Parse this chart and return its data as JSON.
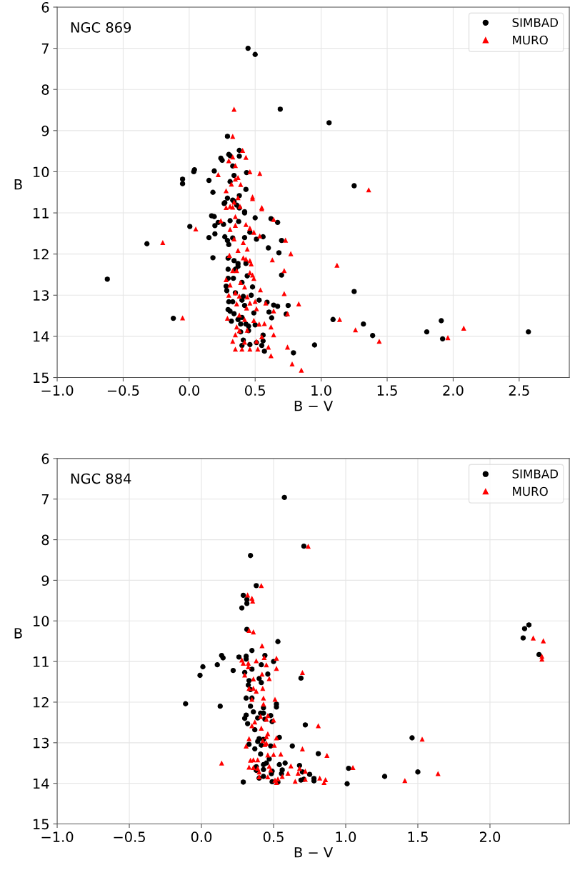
{
  "chart_data": [
    {
      "type": "scatter",
      "annotations": [
        "NGC 869"
      ],
      "xlabel": "B − V",
      "ylabel": "B",
      "xlim": [
        -1.0,
        2.88
      ],
      "xticks": [
        {
          "value": -1.0,
          "label": "−1.0"
        },
        {
          "value": -0.5,
          "label": "−0.5"
        },
        {
          "value": 0.0,
          "label": "0.0"
        },
        {
          "value": 0.5,
          "label": "0.5"
        },
        {
          "value": 1.0,
          "label": "1.0"
        },
        {
          "value": 1.5,
          "label": "1.5"
        },
        {
          "value": 2.0,
          "label": "2.0"
        },
        {
          "value": 2.5,
          "label": "2.5"
        }
      ],
      "ylim": [
        15,
        6
      ],
      "yticks": [
        6,
        7,
        8,
        9,
        10,
        11,
        12,
        13,
        14,
        15
      ],
      "grid": true,
      "legend": "top right",
      "series": [
        {
          "name": "SIMBAD",
          "color": "#000000",
          "marker": "circle",
          "x": [
            0.446,
            0.5,
            0.69,
            1.06,
            0.29,
            0.38,
            0.3,
            0.31,
            0.38,
            0.24,
            0.25,
            0.33,
            0.04,
            0.035,
            0.19,
            0.435,
            -0.05,
            -0.05,
            0.34,
            0.15,
            0.31,
            1.25,
            0.43,
            0.18,
            0.38,
            0.29,
            0.33,
            0.27,
            0.36,
            0.38,
            0.42,
            0.265,
            0.34,
            0.17,
            0.19,
            0.42,
            0.5,
            0.62,
            0.67,
            0.22,
            0.005,
            0.195,
            0.26,
            0.31,
            0.375,
            0.46,
            0.56,
            0.195,
            0.15,
            0.27,
            0.29,
            0.3,
            0.33,
            0.42,
            0.51,
            0.7,
            -0.32,
            0.6,
            0.68,
            0.18,
            0.295,
            0.34,
            0.37,
            0.37,
            0.43,
            0.295,
            0.35,
            0.7,
            0.44,
            0.295,
            0.335,
            0.4,
            0.48,
            -0.62,
            0.28,
            0.285,
            0.35,
            0.47,
            1.25,
            0.41,
            0.4,
            0.3,
            0.33,
            0.53,
            0.59,
            0.64,
            0.67,
            0.75,
            0.42,
            0.295,
            0.31,
            0.34,
            0.49,
            0.605,
            0.735,
            0.4,
            0.37,
            0.32,
            0.625,
            -0.12,
            1.09,
            1.32,
            1.91,
            0.39,
            0.43,
            0.5,
            0.45,
            0.45,
            0.39,
            1.8,
            2.57,
            0.56,
            1.39,
            1.92,
            0.41,
            0.56,
            0.51,
            0.4,
            0.46,
            0.55,
            0.95,
            0.57,
            0.79
          ],
          "values": [
            7.0,
            7.15,
            8.48,
            8.81,
            9.14,
            9.48,
            9.58,
            9.61,
            9.62,
            9.67,
            9.72,
            9.86,
            9.95,
            10.0,
            9.98,
            10.02,
            10.18,
            10.29,
            10.09,
            10.21,
            10.24,
            10.34,
            10.43,
            10.5,
            10.58,
            10.64,
            10.69,
            10.75,
            10.81,
            10.88,
            10.97,
            10.77,
            10.72,
            11.07,
            11.09,
            11.0,
            11.12,
            11.14,
            11.23,
            11.23,
            11.33,
            11.31,
            11.28,
            11.19,
            11.21,
            11.47,
            11.58,
            11.51,
            11.6,
            11.58,
            11.67,
            11.77,
            11.61,
            11.6,
            11.64,
            11.67,
            11.75,
            11.85,
            11.97,
            12.09,
            12.1,
            12.16,
            12.23,
            12.3,
            12.23,
            12.37,
            12.37,
            12.51,
            12.53,
            12.59,
            12.59,
            12.69,
            12.8,
            12.61,
            12.78,
            12.89,
            12.94,
            13.0,
            12.91,
            13.03,
            13.12,
            13.16,
            13.16,
            13.12,
            13.17,
            13.24,
            13.27,
            13.25,
            13.25,
            13.35,
            13.39,
            13.45,
            13.43,
            13.41,
            13.46,
            13.54,
            13.59,
            13.63,
            13.55,
            13.56,
            13.59,
            13.7,
            13.62,
            13.7,
            13.7,
            13.72,
            13.75,
            13.86,
            13.89,
            13.89,
            13.89,
            13.97,
            13.98,
            14.06,
            14.09,
            14.11,
            14.15,
            14.22,
            14.2,
            14.22,
            14.21,
            14.36,
            14.4
          ]
        },
        {
          "name": "MURO",
          "color": "#ff0000",
          "marker": "triangle",
          "x": [
            0.34,
            0.33,
            0.405,
            0.33,
            0.43,
            0.3,
            0.35,
            0.46,
            0.535,
            0.22,
            0.37,
            0.35,
            0.32,
            0.39,
            0.28,
            1.36,
            0.48,
            0.37,
            0.34,
            0.33,
            0.55,
            0.31,
            0.48,
            0.28,
            0.385,
            0.55,
            0.05,
            0.24,
            0.35,
            0.35,
            0.43,
            0.46,
            0.49,
            0.535,
            0.64,
            0.73,
            0.31,
            0.34,
            0.41,
            0.44,
            0.37,
            -0.2,
            0.77,
            0.305,
            0.41,
            0.43,
            0.46,
            0.47,
            0.63,
            1.12,
            0.72,
            0.33,
            0.36,
            0.46,
            0.48,
            0.28,
            0.39,
            0.42,
            0.49,
            0.31,
            0.35,
            0.54,
            0.72,
            0.3,
            0.38,
            0.44,
            0.46,
            0.5,
            0.58,
            0.83,
            0.36,
            0.435,
            0.51,
            0.64,
            0.745,
            0.29,
            -0.05,
            1.14,
            0.38,
            0.42,
            0.49,
            0.53,
            0.57,
            0.62,
            0.36,
            1.26,
            2.08,
            0.44,
            0.38,
            0.64,
            0.35,
            1.96,
            1.44,
            0.33,
            0.42,
            0.51,
            0.55,
            0.6,
            0.745,
            0.35,
            0.4,
            0.46,
            0.52,
            0.62,
            0.78,
            0.85
          ],
          "values": [
            8.48,
            9.14,
            9.48,
            9.64,
            9.65,
            9.73,
            9.85,
            10.0,
            10.04,
            10.07,
            10.14,
            10.18,
            10.3,
            10.31,
            10.46,
            10.44,
            10.61,
            10.63,
            10.74,
            10.86,
            10.87,
            10.84,
            10.65,
            10.87,
            10.84,
            10.9,
            11.39,
            11.19,
            11.09,
            11.3,
            11.28,
            11.37,
            11.47,
            11.56,
            11.16,
            11.66,
            11.4,
            11.63,
            11.72,
            11.88,
            11.91,
            11.72,
            11.99,
            12.03,
            12.09,
            12.12,
            12.16,
            12.24,
            12.14,
            12.27,
            12.4,
            12.4,
            12.4,
            12.45,
            12.51,
            12.62,
            12.69,
            12.8,
            12.59,
            12.75,
            12.94,
            12.87,
            12.96,
            13.0,
            13.02,
            13.04,
            13.19,
            13.15,
            13.19,
            13.21,
            13.21,
            13.31,
            13.33,
            13.38,
            13.45,
            13.56,
            13.55,
            13.59,
            13.48,
            13.59,
            13.61,
            13.7,
            13.69,
            13.77,
            13.77,
            13.84,
            13.8,
            13.85,
            13.86,
            13.96,
            13.96,
            14.03,
            14.12,
            14.12,
            14.14,
            14.12,
            14.01,
            14.26,
            14.26,
            14.31,
            14.31,
            14.31,
            14.31,
            14.47,
            14.67,
            14.82
          ]
        }
      ]
    },
    {
      "type": "scatter",
      "annotations": [
        "NGC 884"
      ],
      "xlabel": "B − V",
      "ylabel": "B",
      "xlim": [
        -1.0,
        2.55
      ],
      "xticks": [
        {
          "value": -1.0,
          "label": "−1.0"
        },
        {
          "value": -0.5,
          "label": "−0.5"
        },
        {
          "value": 0.0,
          "label": "0.0"
        },
        {
          "value": 0.5,
          "label": "0.5"
        },
        {
          "value": 1.0,
          "label": "1.0"
        },
        {
          "value": 1.5,
          "label": "1.5"
        },
        {
          "value": 2.0,
          "label": "2.0"
        }
      ],
      "ylim": [
        15,
        6
      ],
      "yticks": [
        6,
        7,
        8,
        9,
        10,
        11,
        12,
        13,
        14,
        15
      ],
      "grid": true,
      "legend": "top right",
      "series": [
        {
          "name": "SIMBAD",
          "color": "#000000",
          "marker": "circle",
          "x": [
            0.575,
            0.71,
            0.34,
            0.38,
            0.29,
            0.315,
            0.315,
            0.28,
            0.315,
            0.53,
            0.35,
            2.27,
            2.24,
            2.23,
            2.34,
            0.14,
            0.15,
            0.01,
            -0.01,
            0.11,
            0.22,
            0.26,
            0.31,
            0.31,
            0.44,
            0.5,
            0.415,
            0.35,
            0.3,
            0.46,
            0.69,
            0.325,
            0.33,
            0.4,
            0.415,
            0.34,
            0.31,
            0.35,
            -0.11,
            0.13,
            0.52,
            0.52,
            0.34,
            0.43,
            0.36,
            0.41,
            0.43,
            0.31,
            0.3,
            0.39,
            0.48,
            0.49,
            0.44,
            0.32,
            0.72,
            0.37,
            0.54,
            0.4,
            0.39,
            0.43,
            0.33,
            0.415,
            0.48,
            0.63,
            0.37,
            1.46,
            0.81,
            0.41,
            0.47,
            0.45,
            0.43,
            0.58,
            0.54,
            0.68,
            0.38,
            0.38,
            0.43,
            0.49,
            0.56,
            1.5,
            1.02,
            0.7,
            0.75,
            0.485,
            0.555,
            0.43,
            1.27,
            1.01,
            0.71,
            0.69,
            0.78,
            0.78,
            0.49,
            0.53,
            0.29,
            0.4
          ],
          "values": [
            6.96,
            8.16,
            8.39,
            9.13,
            9.37,
            9.47,
            9.57,
            9.68,
            10.21,
            10.51,
            10.73,
            10.1,
            10.19,
            10.42,
            10.83,
            10.85,
            10.91,
            11.13,
            11.34,
            11.08,
            11.22,
            10.89,
            10.87,
            10.94,
            10.85,
            11.0,
            11.08,
            11.19,
            11.27,
            11.31,
            11.41,
            11.58,
            11.47,
            11.42,
            11.52,
            11.69,
            11.9,
            11.9,
            12.04,
            12.1,
            12.05,
            12.12,
            12.1,
            12.14,
            12.24,
            12.27,
            12.27,
            12.32,
            12.4,
            12.39,
            12.33,
            12.48,
            12.42,
            12.53,
            12.56,
            12.68,
            12.87,
            12.9,
            12.97,
            12.92,
            13.04,
            13.06,
            13.08,
            13.08,
            13.15,
            12.88,
            13.27,
            13.28,
            13.4,
            13.5,
            13.54,
            13.5,
            13.54,
            13.56,
            13.59,
            13.68,
            13.66,
            13.7,
            13.67,
            13.72,
            13.63,
            13.72,
            13.78,
            13.76,
            13.76,
            13.83,
            13.83,
            14.01,
            13.9,
            13.92,
            13.88,
            13.94,
            13.96,
            13.97,
            13.97,
            13.87
          ]
        },
        {
          "name": "MURO",
          "color": "#ff0000",
          "marker": "triangle",
          "x": [
            0.74,
            0.415,
            0.32,
            0.35,
            0.355,
            0.33,
            0.36,
            0.42,
            2.3,
            2.37,
            2.36,
            2.36,
            0.28,
            0.29,
            0.38,
            0.325,
            0.435,
            0.52,
            0.45,
            0.52,
            0.7,
            0.3,
            0.325,
            0.36,
            0.42,
            0.47,
            0.33,
            0.36,
            0.38,
            0.425,
            0.35,
            0.43,
            0.51,
            0.43,
            0.46,
            0.45,
            0.5,
            0.41,
            0.37,
            0.35,
            0.81,
            0.415,
            0.46,
            0.45,
            0.52,
            0.33,
            0.425,
            0.31,
            0.44,
            0.45,
            0.505,
            0.7,
            1.53,
            0.14,
            0.34,
            0.36,
            0.39,
            0.46,
            0.5,
            0.55,
            0.87,
            0.33,
            0.36,
            0.39,
            0.4,
            0.47,
            0.48,
            0.62,
            0.68,
            0.72,
            1.64,
            1.05,
            0.6,
            0.56,
            0.53,
            0.4,
            0.46,
            0.72,
            0.65,
            0.67,
            0.82,
            0.86,
            0.85,
            1.41,
            0.52,
            0.51
          ],
          "values": [
            8.16,
            9.13,
            9.36,
            9.44,
            9.51,
            10.23,
            10.27,
            10.61,
            10.42,
            10.49,
            10.87,
            10.94,
            10.96,
            11.04,
            10.98,
            11.04,
            10.9,
            10.92,
            11.08,
            11.17,
            11.27,
            11.33,
            11.13,
            11.43,
            11.31,
            11.42,
            11.66,
            11.66,
            11.73,
            11.66,
            11.93,
            11.9,
            11.93,
            12.05,
            12.33,
            12.42,
            12.44,
            12.35,
            12.49,
            12.58,
            12.58,
            12.64,
            12.78,
            12.85,
            12.88,
            12.9,
            12.95,
            13.08,
            13.04,
            13.01,
            13.06,
            13.15,
            12.91,
            13.5,
            13.43,
            13.42,
            13.42,
            13.3,
            13.29,
            13.28,
            13.31,
            13.6,
            13.61,
            13.63,
            13.72,
            13.58,
            13.67,
            13.57,
            13.63,
            13.7,
            13.76,
            13.61,
            13.75,
            13.83,
            13.89,
            13.84,
            13.84,
            13.9,
            13.95,
            13.75,
            13.87,
            13.91,
            13.98,
            13.93,
            13.98,
            13.92
          ]
        }
      ]
    }
  ]
}
